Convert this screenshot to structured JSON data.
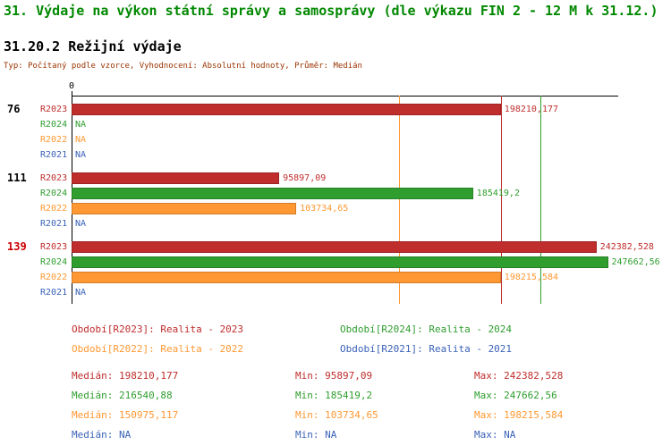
{
  "header": {
    "title": "31. Výdaje na výkon státní správy a samosprávy (dle výkazu FIN 2 - 12 M k 31.12.)",
    "subtitle": "31.20.2 Režijní výdaje",
    "meta": "Typ: Počítaný podle vzorce, Vyhodnocení: Absolutní hodnoty, Průměr: Medián"
  },
  "colors": {
    "title": "#008800",
    "meta": "#993300",
    "highlight_group": "#cc0000",
    "axis": "#000000",
    "series": {
      "R2023": "#c02d2d",
      "R2024": "#2f9e2f",
      "R2022": "#ff9832",
      "R2021": "#3a62b8"
    }
  },
  "chart_data": {
    "type": "bar",
    "orientation": "horizontal",
    "title": "31.20.2 Režijní výdaje",
    "xlim": [
      0,
      252000
    ],
    "axis_zero_label": "0",
    "series_order": [
      "R2023",
      "R2024",
      "R2022",
      "R2021"
    ],
    "groups": [
      {
        "label": "76",
        "highlight": false,
        "bars": [
          {
            "series": "R2023",
            "value": 198210.177,
            "display": "198210,177"
          },
          {
            "series": "R2024",
            "value": null,
            "display": "NA"
          },
          {
            "series": "R2022",
            "value": null,
            "display": "NA"
          },
          {
            "series": "R2021",
            "value": null,
            "display": "NA"
          }
        ]
      },
      {
        "label": "111",
        "highlight": false,
        "bars": [
          {
            "series": "R2023",
            "value": 95897.09,
            "display": "95897,09"
          },
          {
            "series": "R2024",
            "value": 185419.2,
            "display": "185419,2"
          },
          {
            "series": "R2022",
            "value": 103734.65,
            "display": "103734,65"
          },
          {
            "series": "R2021",
            "value": null,
            "display": "NA"
          }
        ]
      },
      {
        "label": "139",
        "highlight": true,
        "bars": [
          {
            "series": "R2023",
            "value": 242382.528,
            "display": "242382,528"
          },
          {
            "series": "R2024",
            "value": 247662.56,
            "display": "247662,56"
          },
          {
            "series": "R2022",
            "value": 198215.584,
            "display": "198215,584"
          },
          {
            "series": "R2021",
            "value": null,
            "display": "NA"
          }
        ]
      }
    ],
    "median_lines": [
      {
        "series": "R2022",
        "value": 150975.117
      },
      {
        "series": "R2023",
        "value": 198210.177
      },
      {
        "series": "R2024",
        "value": 216540.88
      }
    ],
    "summary": {
      "R2023": {
        "median": 198210.177,
        "min": 95897.09,
        "max": 242382.528
      },
      "R2024": {
        "median": 216540.88,
        "min": 185419.2,
        "max": 247662.56
      },
      "R2022": {
        "median": 150975.117,
        "min": 103734.65,
        "max": 198215.584
      },
      "R2021": {
        "median": null,
        "min": null,
        "max": null
      }
    }
  },
  "legend": {
    "items": [
      {
        "series": "R2023",
        "text": "Období[R2023]: Realita - 2023"
      },
      {
        "series": "R2024",
        "text": "Období[R2024]: Realita - 2024"
      },
      {
        "series": "R2022",
        "text": "Období[R2022]: Realita - 2022"
      },
      {
        "series": "R2021",
        "text": "Období[R2021]: Realita - 2021"
      }
    ]
  },
  "stats": {
    "rows": [
      {
        "series": "R2023",
        "median": "Medián: 198210,177",
        "min": "Min: 95897,09",
        "max": "Max: 242382,528"
      },
      {
        "series": "R2024",
        "median": "Medián: 216540,88",
        "min": "Min: 185419,2",
        "max": "Max: 247662,56"
      },
      {
        "series": "R2022",
        "median": "Medián: 150975,117",
        "min": "Min: 103734,65",
        "max": "Max: 198215,584"
      },
      {
        "series": "R2021",
        "median": "Medián: NA",
        "min": "Min: NA",
        "max": "Max: NA"
      }
    ]
  }
}
